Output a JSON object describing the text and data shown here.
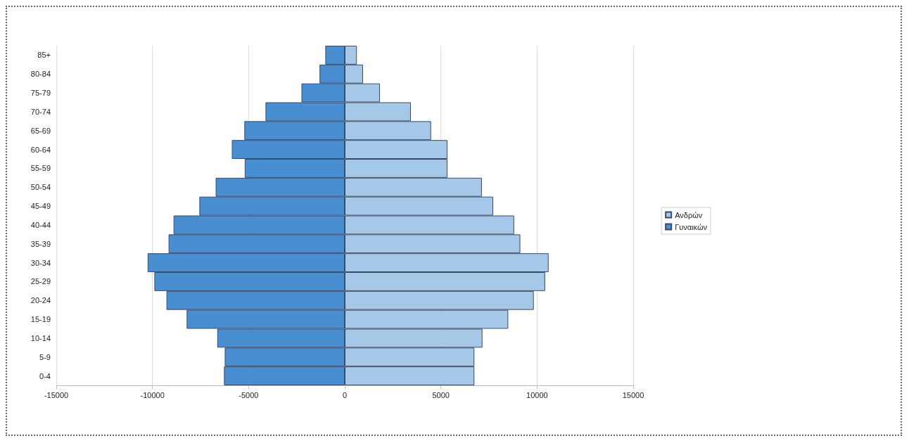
{
  "chart_data": {
    "type": "bar",
    "orientation": "horizontal",
    "stacked": true,
    "categories": [
      "85+",
      "80-84",
      "75-79",
      "70-74",
      "65-69",
      "60-64",
      "55-59",
      "50-54",
      "45-49",
      "40-44",
      "35-39",
      "30-34",
      "25-29",
      "20-24",
      "15-19",
      "10-14",
      "5-9",
      "0-4"
    ],
    "series": [
      {
        "name": "Ανδρών",
        "color": "#a6c8e8",
        "values": [
          630,
          950,
          1830,
          3440,
          4490,
          5340,
          5340,
          7130,
          7720,
          8810,
          9130,
          10600,
          10420,
          9830,
          8500,
          7160,
          6740,
          6740
        ]
      },
      {
        "name": "Γυναικών",
        "color": "#4a8ed2",
        "values": [
          -1010,
          -1310,
          -2250,
          -4120,
          -5220,
          -5870,
          -5200,
          -6710,
          -7560,
          -8900,
          -9160,
          -10250,
          -9900,
          -9270,
          -8220,
          -6630,
          -6240,
          -6280
        ]
      }
    ],
    "xlim": [
      -15000,
      15000
    ],
    "xticks": [
      -15000,
      -10000,
      -5000,
      0,
      5000,
      10000,
      15000
    ],
    "grid": "x",
    "legend": "right"
  }
}
